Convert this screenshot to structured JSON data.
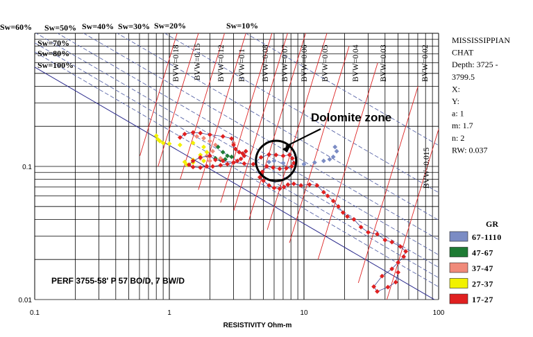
{
  "chart_data": {
    "type": "scatter",
    "x_scale": "log",
    "y_scale": "log",
    "xlim": [
      0.1,
      100
    ],
    "ylim": [
      0.01,
      1
    ],
    "xlabel": "RESISTIVITY Ohm-m",
    "x_ticks": [
      {
        "value": 0.1,
        "label": "0.1"
      },
      {
        "value": 1,
        "label": "1"
      },
      {
        "value": 10,
        "label": "10"
      },
      {
        "value": 100,
        "label": "100"
      }
    ],
    "y_ticks": [
      {
        "value": 0.1,
        "label": "0.1"
      },
      {
        "value": 0.01,
        "label": "0.01"
      }
    ],
    "rw": 0.037,
    "m": 1.7,
    "n": 2,
    "sw_lines": [
      {
        "sw": 0.6,
        "label": "Sw=60%"
      },
      {
        "sw": 0.5,
        "label": "Sw=50%"
      },
      {
        "sw": 0.4,
        "label": "Sw=40%"
      },
      {
        "sw": 0.3,
        "label": "Sw=30%"
      },
      {
        "sw": 0.2,
        "label": "Sw=20%"
      },
      {
        "sw": 0.1,
        "label": "Sw=10%"
      },
      {
        "sw": 0.7,
        "label": "Sw=70%"
      },
      {
        "sw": 0.8,
        "label": "Sw=80%"
      },
      {
        "sw": 1.0,
        "label": "Sw=100%"
      }
    ],
    "bvw_lines": [
      {
        "bvw": 0.18,
        "label": "BVW=0.18"
      },
      {
        "bvw": 0.15,
        "label": "BVW=0.15"
      },
      {
        "bvw": 0.12,
        "label": "BVW=0.12"
      },
      {
        "bvw": 0.1,
        "label": "BVW=0.1"
      },
      {
        "bvw": 0.08,
        "label": "BVW=0.08"
      },
      {
        "bvw": 0.07,
        "label": "BVW=0.07"
      },
      {
        "bvw": 0.06,
        "label": "BVW=0.06"
      },
      {
        "bvw": 0.05,
        "label": "BVW=0.05"
      },
      {
        "bvw": 0.04,
        "label": "BVW=0.04"
      },
      {
        "bvw": 0.03,
        "label": "BVW=0.03"
      },
      {
        "bvw": 0.02,
        "label": "BVW=0.02"
      },
      {
        "bvw": 0.015,
        "label": "BVW=0.015"
      }
    ],
    "legend": {
      "title": "GR",
      "placement": "bottom-right",
      "items": [
        {
          "label": "67-1110",
          "color": "#7b8cc4"
        },
        {
          "label": "47-67",
          "color": "#1e7b34"
        },
        {
          "label": "37-47",
          "color": "#f08a7a"
        },
        {
          "label": "27-37",
          "color": "#f2f200"
        },
        {
          "label": "17-27",
          "color": "#e02020"
        }
      ]
    },
    "series": [
      {
        "gr": "67-1110",
        "color": "#7b8cc4",
        "points": [
          [
            17,
            0.14
          ],
          [
            17.5,
            0.13
          ],
          [
            16.5,
            0.118
          ],
          [
            15.5,
            0.113
          ],
          [
            14,
            0.11
          ],
          [
            12,
            0.107
          ],
          [
            10,
            0.104
          ],
          [
            8.5,
            0.105
          ],
          [
            7,
            0.106
          ],
          [
            6,
            0.11
          ],
          [
            5.5,
            0.108
          ]
        ]
      },
      {
        "gr": "47-67",
        "color": "#1e7b34",
        "points": [
          [
            2.3,
            0.14
          ],
          [
            2.5,
            0.128
          ],
          [
            2.7,
            0.12
          ],
          [
            2.9,
            0.118
          ],
          [
            2.6,
            0.113
          ],
          [
            2.4,
            0.112
          ],
          [
            2.2,
            0.115
          ]
        ]
      },
      {
        "gr": "37-47",
        "color": "#f08a7a",
        "points": [
          [
            1.6,
            0.168
          ],
          [
            1.8,
            0.163
          ],
          [
            2.0,
            0.155
          ],
          [
            2.2,
            0.145
          ],
          [
            2.1,
            0.13
          ],
          [
            1.9,
            0.12
          ],
          [
            1.7,
            0.115
          ],
          [
            2.0,
            0.11
          ],
          [
            2.4,
            0.115
          ],
          [
            3.0,
            0.15
          ]
        ]
      },
      {
        "gr": "27-37",
        "color": "#f2f200",
        "points": [
          [
            0.8,
            0.17
          ],
          [
            0.82,
            0.16
          ],
          [
            0.85,
            0.155
          ],
          [
            0.9,
            0.15
          ],
          [
            1.0,
            0.148
          ],
          [
            1.2,
            0.145
          ],
          [
            1.5,
            0.15
          ],
          [
            1.8,
            0.14
          ],
          [
            1.9,
            0.128
          ],
          [
            1.7,
            0.122
          ],
          [
            1.5,
            0.112
          ],
          [
            1.3,
            0.108
          ],
          [
            1.35,
            0.103
          ],
          [
            1.5,
            0.107
          ],
          [
            1.8,
            0.11
          ]
        ]
      },
      {
        "gr": "17-27",
        "color": "#e02020",
        "points": [
          [
            1.2,
            0.165
          ],
          [
            1.3,
            0.175
          ],
          [
            1.5,
            0.18
          ],
          [
            1.7,
            0.178
          ],
          [
            2.0,
            0.173
          ],
          [
            2.5,
            0.168
          ],
          [
            2.9,
            0.162
          ],
          [
            3.0,
            0.145
          ],
          [
            3.1,
            0.135
          ],
          [
            3.3,
            0.128
          ],
          [
            3.5,
            0.125
          ],
          [
            3.7,
            0.13
          ],
          [
            3.6,
            0.12
          ],
          [
            3.4,
            0.114
          ],
          [
            3.2,
            0.11
          ],
          [
            3.0,
            0.107
          ],
          [
            2.7,
            0.104
          ],
          [
            2.4,
            0.102
          ],
          [
            2.1,
            0.1
          ],
          [
            1.9,
            0.1
          ],
          [
            1.7,
            0.098
          ],
          [
            1.5,
            0.099
          ],
          [
            1.4,
            0.103
          ],
          [
            1.5,
            0.11
          ],
          [
            1.7,
            0.117
          ],
          [
            2.0,
            0.12
          ],
          [
            2.2,
            0.112
          ],
          [
            2.5,
            0.11
          ],
          [
            3.0,
            0.107
          ],
          [
            3.6,
            0.105
          ],
          [
            4.2,
            0.104
          ],
          [
            4.8,
            0.117
          ],
          [
            5.5,
            0.123
          ],
          [
            6.2,
            0.122
          ],
          [
            7.0,
            0.12
          ],
          [
            7.8,
            0.122
          ],
          [
            8.2,
            0.115
          ],
          [
            8.4,
            0.106
          ],
          [
            8.1,
            0.1
          ],
          [
            7.4,
            0.097
          ],
          [
            6.6,
            0.096
          ],
          [
            5.9,
            0.098
          ],
          [
            5.3,
            0.1
          ],
          [
            4.9,
            0.091
          ],
          [
            4.7,
            0.083
          ],
          [
            5.0,
            0.078
          ],
          [
            5.5,
            0.072
          ],
          [
            6.0,
            0.069
          ],
          [
            6.6,
            0.068
          ],
          [
            7.1,
            0.07
          ],
          [
            7.6,
            0.073
          ],
          [
            8.4,
            0.074
          ],
          [
            9.5,
            0.072
          ],
          [
            11,
            0.073
          ],
          [
            12.5,
            0.072
          ],
          [
            14,
            0.064
          ],
          [
            15,
            0.06
          ],
          [
            16.5,
            0.055
          ],
          [
            18,
            0.05
          ],
          [
            19.5,
            0.045
          ],
          [
            21,
            0.042
          ],
          [
            23.5,
            0.04
          ],
          [
            26.5,
            0.035
          ],
          [
            30,
            0.032
          ],
          [
            35,
            0.031
          ],
          [
            40,
            0.028
          ],
          [
            45,
            0.027
          ],
          [
            52,
            0.025
          ],
          [
            57,
            0.023
          ],
          [
            55,
            0.021
          ],
          [
            50,
            0.019
          ],
          [
            45,
            0.017
          ],
          [
            38,
            0.015
          ],
          [
            33,
            0.0125
          ],
          [
            35,
            0.0115
          ],
          [
            42,
            0.0124
          ],
          [
            48,
            0.0135
          ],
          [
            50,
            0.016
          ]
        ]
      }
    ],
    "annotations": [
      {
        "text": "Dolomite zone",
        "x": 6.2,
        "y": 0.11,
        "type": "circle-with-arrow"
      },
      {
        "text": "PERF 3755-58' P 57 BO/D, 7 BW/D"
      }
    ],
    "info_panel": {
      "lines": [
        "MISSISSIPPIAN",
        "CHAT",
        "Depth: 3725 -",
        "3799.5",
        "X:",
        "Y:",
        "a: 1",
        "m: 1.7",
        "n: 2",
        "RW: 0.037"
      ]
    }
  },
  "colors": {
    "grid": "#000000",
    "sw_curve": "#2a2a8c",
    "sw_curve_dashed": "#5a66a8",
    "bvw_line": "#dd2222",
    "connector": "#1f2a80"
  }
}
